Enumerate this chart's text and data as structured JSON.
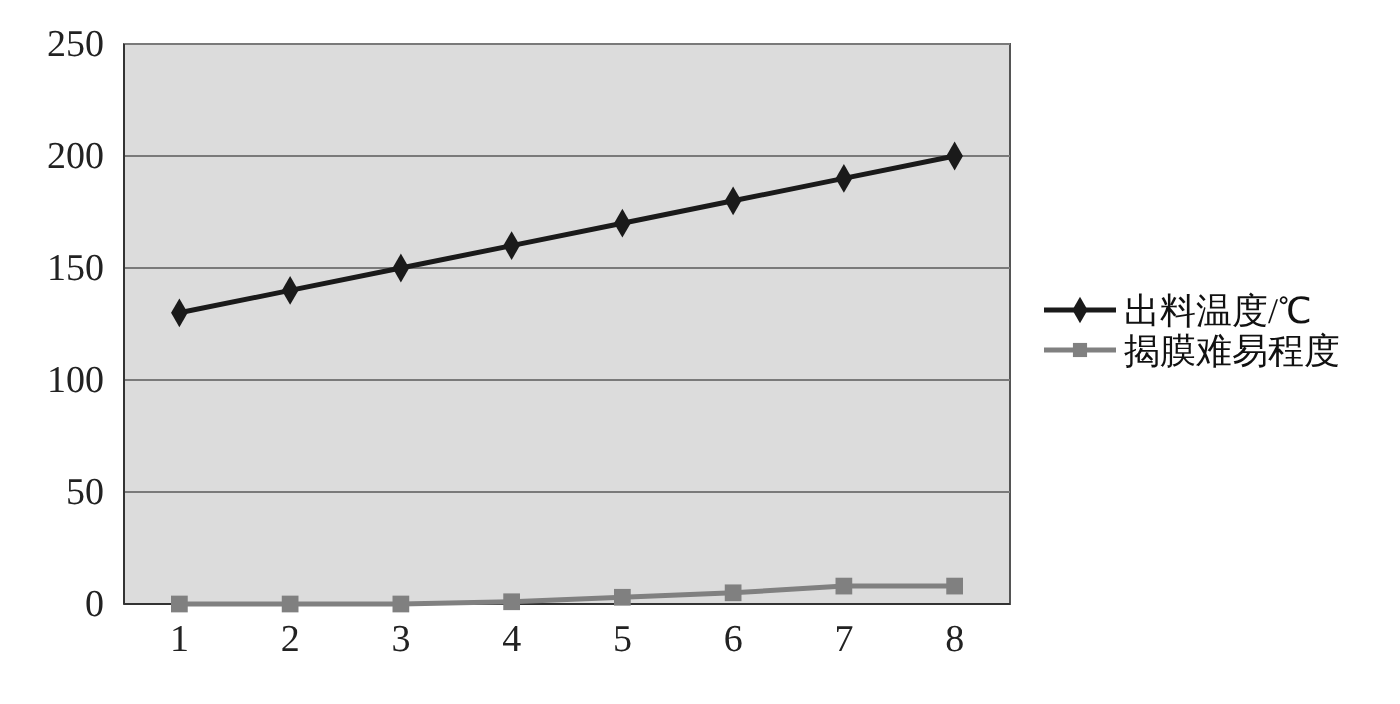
{
  "chart_data": {
    "type": "line",
    "categories": [
      "1",
      "2",
      "3",
      "4",
      "5",
      "6",
      "7",
      "8"
    ],
    "series": [
      {
        "name": "出料温度/℃",
        "color": "#1a1a1a",
        "values": [
          130,
          140,
          150,
          160,
          170,
          180,
          190,
          200
        ],
        "marker": "diamond"
      },
      {
        "name": "揭膜难易程度",
        "color": "#808080",
        "values": [
          0,
          0,
          0,
          1,
          3,
          5,
          8,
          8
        ],
        "marker": "square"
      }
    ],
    "ylim": [
      0,
      250
    ],
    "yticks": [
      0,
      50,
      100,
      150,
      200,
      250
    ],
    "grid": "y",
    "legend": "right"
  }
}
